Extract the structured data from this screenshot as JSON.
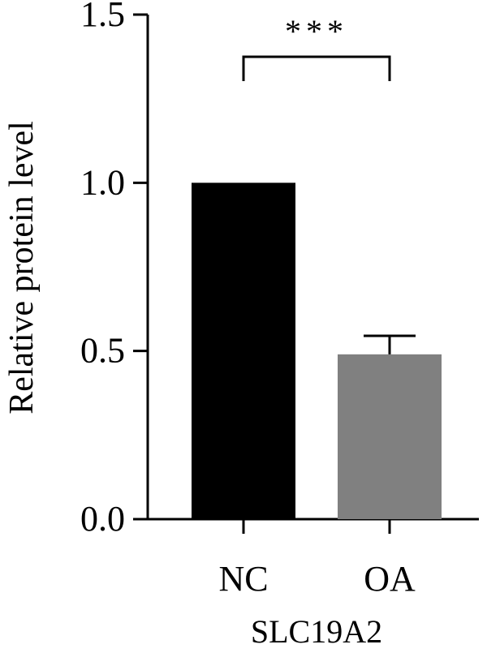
{
  "chart_data": {
    "type": "bar",
    "categories": [
      "NC",
      "OA"
    ],
    "values": [
      1.0,
      0.49
    ],
    "error_upper": [
      0,
      0.055
    ],
    "bar_colors": [
      "#000000",
      "#808080"
    ],
    "ylabel": "Relative protein level",
    "xlabel": "SLC19A2",
    "ylim": [
      0,
      1.5
    ],
    "yticks": [
      0.0,
      0.5,
      1.0,
      1.5
    ],
    "ytick_labels": [
      "0.0",
      "0.5",
      "1.0",
      "1.5"
    ],
    "grid": false,
    "significance": {
      "between": [
        "NC",
        "OA"
      ],
      "label": "***"
    }
  }
}
